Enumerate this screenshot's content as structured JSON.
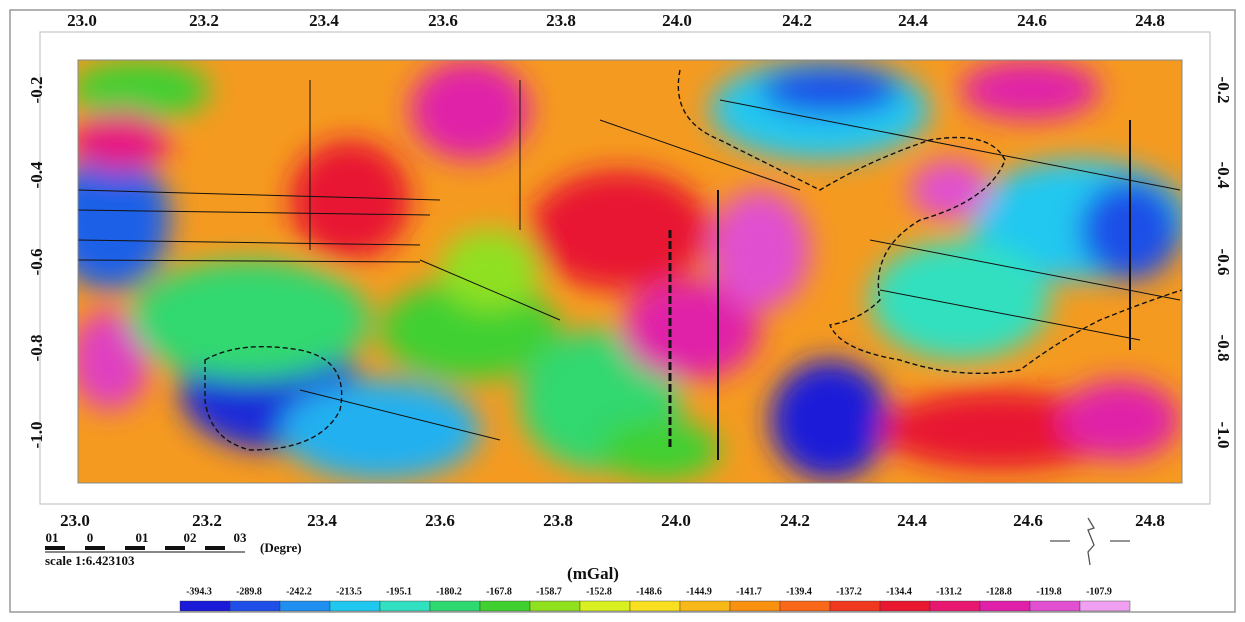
{
  "map": {
    "x_ticks_top": [
      "23.0",
      "23.2",
      "23.4",
      "23.6",
      "23.8",
      "24.0",
      "24.2",
      "24.4",
      "24.6",
      "24.8"
    ],
    "x_ticks_bottom": [
      "23.0",
      "23.2",
      "23.4",
      "23.6",
      "23.8",
      "24.0",
      "24.2",
      "24.4",
      "24.6",
      "24.8"
    ],
    "y_ticks_left": [
      "-0.2",
      "-0.4",
      "-0.6",
      "-0.8",
      "-1.0"
    ],
    "y_ticks_right": [
      "-0.2",
      "-0.4",
      "-0.6",
      "-0.8",
      "-1.0"
    ]
  },
  "scale_bar": {
    "labels": [
      "01",
      "0",
      "01",
      "02",
      "03"
    ],
    "unit": "(Degre)",
    "scale": "scale 1:6.423103"
  },
  "colorbar": {
    "unit": "(mGal)",
    "labels": [
      "-394.3",
      "-289.8",
      "-242.2",
      "-213.5",
      "-195.1",
      "-180.2",
      "-167.8",
      "-158.7",
      "-152.8",
      "-148.6",
      "-144.9",
      "-141.7",
      "-139.4",
      "-137.2",
      "-134.4",
      "-131.2",
      "-128.8",
      "-119.8",
      "-107.9"
    ],
    "colors": [
      "#1a1ad8",
      "#1f4fe8",
      "#1f8ff0",
      "#20c8f0",
      "#30e0c0",
      "#30d870",
      "#40d030",
      "#90e020",
      "#d8f020",
      "#f8e020",
      "#f8b818",
      "#f89010",
      "#f86818",
      "#f03820",
      "#e81830",
      "#e81870",
      "#e020a8",
      "#e050d0",
      "#f0a0f0"
    ]
  }
}
